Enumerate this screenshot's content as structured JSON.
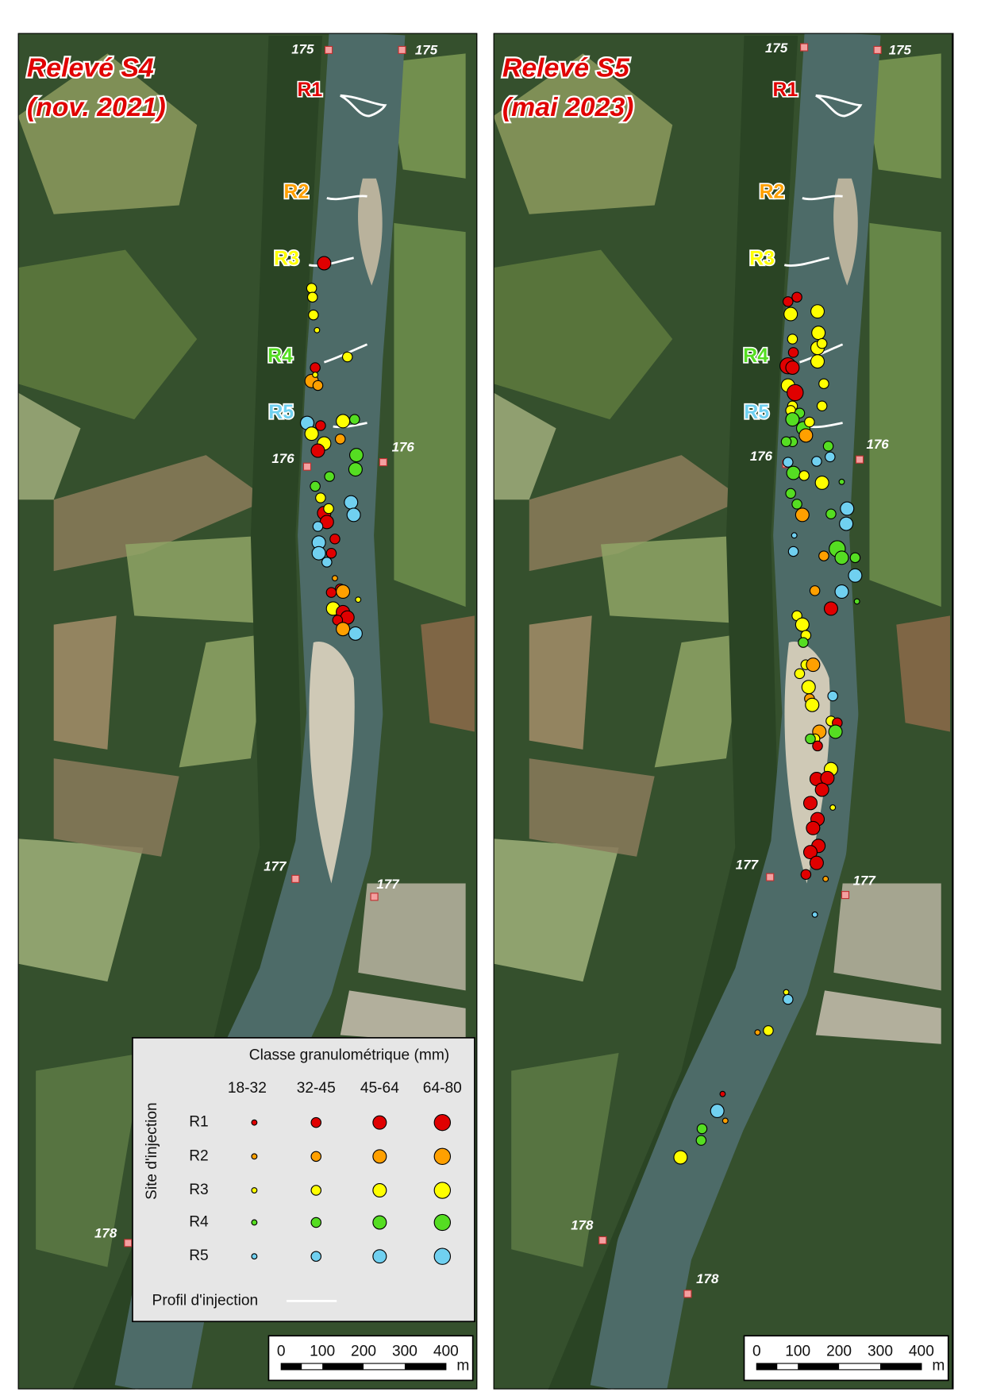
{
  "panels": [
    {
      "title_line1": "Relevé S4",
      "title_line2": "(nov. 2021)",
      "sites": [
        "R1",
        "R2",
        "R3",
        "R4",
        "R5"
      ],
      "km": [
        "175",
        "175",
        "176",
        "176",
        "177",
        "177",
        "178"
      ]
    },
    {
      "title_line1": "Relevé S5",
      "title_line2": "(mai 2023)",
      "sites": [
        "R1",
        "R2",
        "R3",
        "R4",
        "R5"
      ],
      "km": [
        "175",
        "175",
        "176",
        "176",
        "177",
        "177",
        "178",
        "178"
      ]
    }
  ],
  "legend": {
    "title": "Classe granulométrique (mm)",
    "axis_label": "Site d'injection",
    "classes": [
      "18-32",
      "32-45",
      "45-64",
      "64-80"
    ],
    "sites": [
      "R1",
      "R2",
      "R3",
      "R4",
      "R5"
    ],
    "profile_label": "Profil d'injection"
  },
  "scale_bar": {
    "labels": [
      "0",
      "100",
      "200",
      "300",
      "400"
    ],
    "unit": "m"
  }
}
